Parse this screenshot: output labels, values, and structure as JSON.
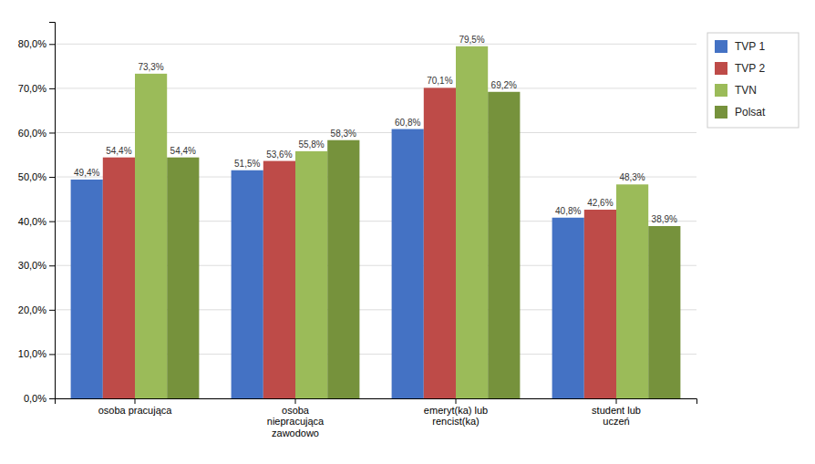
{
  "chart_data": {
    "type": "bar",
    "categories": [
      "osoba pracująca",
      "osoba\nniepracująca\nzawodowo",
      "emeryt(ka) lub\nrencist(ka)",
      "student lub\nuczeń"
    ],
    "series": [
      {
        "name": "TVP 1",
        "color": "#4472C4",
        "values": [
          49.4,
          51.5,
          60.8,
          40.8
        ],
        "value_labels": [
          "49,4%",
          "51,5%",
          "60,8%",
          "40,8%"
        ]
      },
      {
        "name": "TVP 2",
        "color": "#BE4B48",
        "values": [
          54.4,
          53.6,
          70.1,
          42.6
        ],
        "value_labels": [
          "54,4%",
          "53,6%",
          "70,1%",
          "42,6%"
        ]
      },
      {
        "name": "TVN",
        "color": "#9BBB59",
        "values": [
          73.3,
          55.8,
          79.5,
          48.3
        ],
        "value_labels": [
          "73,3%",
          "55,8%",
          "79,5%",
          "48,3%"
        ]
      },
      {
        "name": "Polsat",
        "color": "#76923C",
        "values": [
          54.4,
          58.3,
          69.2,
          38.9
        ],
        "value_labels": [
          "54,4%",
          "58,3%",
          "69,2%",
          "38,9%"
        ]
      }
    ],
    "ylim": [
      0,
      85
    ],
    "yticks": [
      {
        "value": 0,
        "label": "0,0%"
      },
      {
        "value": 10,
        "label": "10,0%"
      },
      {
        "value": 20,
        "label": "20,0%"
      },
      {
        "value": 30,
        "label": "30,0%"
      },
      {
        "value": 40,
        "label": "40,0%"
      },
      {
        "value": 50,
        "label": "50,0%"
      },
      {
        "value": 60,
        "label": "60,0%"
      },
      {
        "value": 70,
        "label": "70,0%"
      },
      {
        "value": 80,
        "label": "80,0%"
      }
    ],
    "grid": true,
    "data_labels": true,
    "legend": "right"
  }
}
